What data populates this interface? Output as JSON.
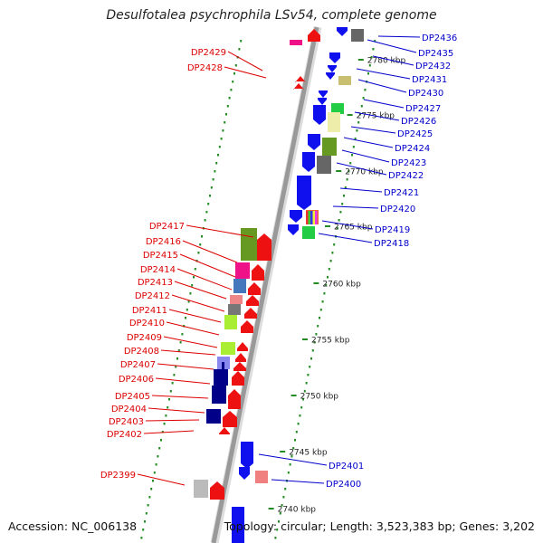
{
  "title": "Desulfotalea psychrophila LSv54, complete genome",
  "footer": {
    "accession": "Accession: NC_006138",
    "topology": "Topology: circular; Length: 3,523,383 bp; Genes: 3,202"
  },
  "colors": {
    "backbone": "#999999",
    "tick": "#228b22",
    "forward_label": "#0000cc",
    "reverse_label": "#dd0000"
  },
  "scale_labels": [
    {
      "kbp": 2780,
      "text": "2780 kbp"
    },
    {
      "kbp": 2775,
      "text": "2775 kbp"
    },
    {
      "kbp": 2770,
      "text": "2770 kbp"
    },
    {
      "kbp": 2765,
      "text": "2765 kbp"
    },
    {
      "kbp": 2760,
      "text": "2760 kbp"
    },
    {
      "kbp": 2755,
      "text": "2755 kbp"
    },
    {
      "kbp": 2750,
      "text": "2750 kbp"
    },
    {
      "kbp": 2745,
      "text": "2745 kbp"
    },
    {
      "kbp": 2740,
      "text": "2740 kbp"
    }
  ],
  "forward_labels": [
    "DP2436",
    "DP2435",
    "DP2432",
    "DP2431",
    "DP2430",
    "DP2427",
    "DP2426",
    "DP2425",
    "DP2424",
    "DP2423",
    "DP2422",
    "DP2421",
    "DP2420",
    "DP2419",
    "DP2418",
    "DP2401",
    "DP2400"
  ],
  "reverse_labels": [
    "DP2429",
    "DP2428",
    "DP2417",
    "DP2416",
    "DP2415",
    "DP2414",
    "DP2413",
    "DP2412",
    "DP2411",
    "DP2410",
    "DP2409",
    "DP2408",
    "DP2407",
    "DP2406",
    "DP2405",
    "DP2404",
    "DP2403",
    "DP2402",
    "DP2399"
  ]
}
